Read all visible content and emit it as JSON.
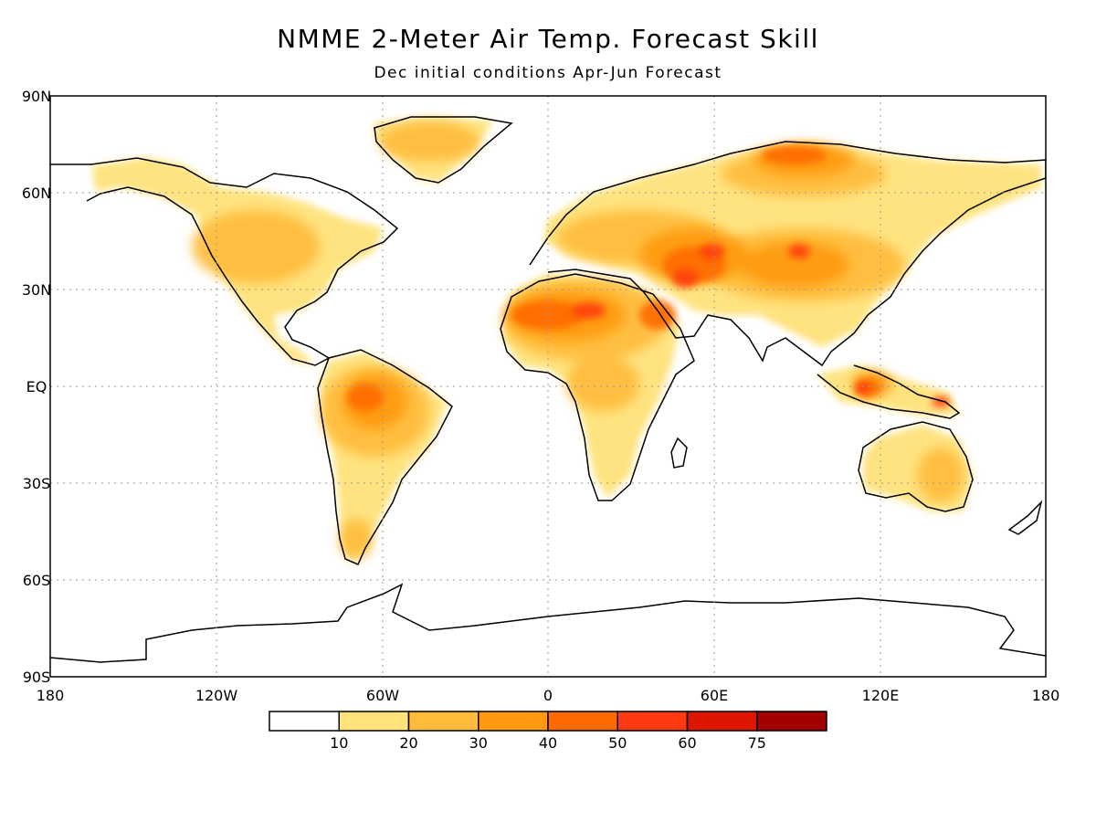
{
  "title": "NMME 2-Meter Air Temp. Forecast Skill",
  "subtitle": "Dec initial conditions   Apr-Jun Forecast",
  "map": {
    "projection": "equirectangular",
    "lon_range": [
      -180,
      180
    ],
    "lat_range": [
      -90,
      90
    ],
    "grid": true,
    "lat_labels": [
      "90N",
      "60N",
      "30N",
      "EQ",
      "30S",
      "60S",
      "90S"
    ],
    "lon_labels": [
      "180",
      "120W",
      "60W",
      "0",
      "60E",
      "120E",
      "180"
    ]
  },
  "colorbar": {
    "levels": [
      "10",
      "20",
      "30",
      "40",
      "50",
      "60",
      "75"
    ],
    "colors": [
      "#ffffff",
      "#ffe27a",
      "#ffbb3a",
      "#ff9a10",
      "#ff6a00",
      "#ff3a10",
      "#dd1600",
      "#a00000"
    ]
  }
}
